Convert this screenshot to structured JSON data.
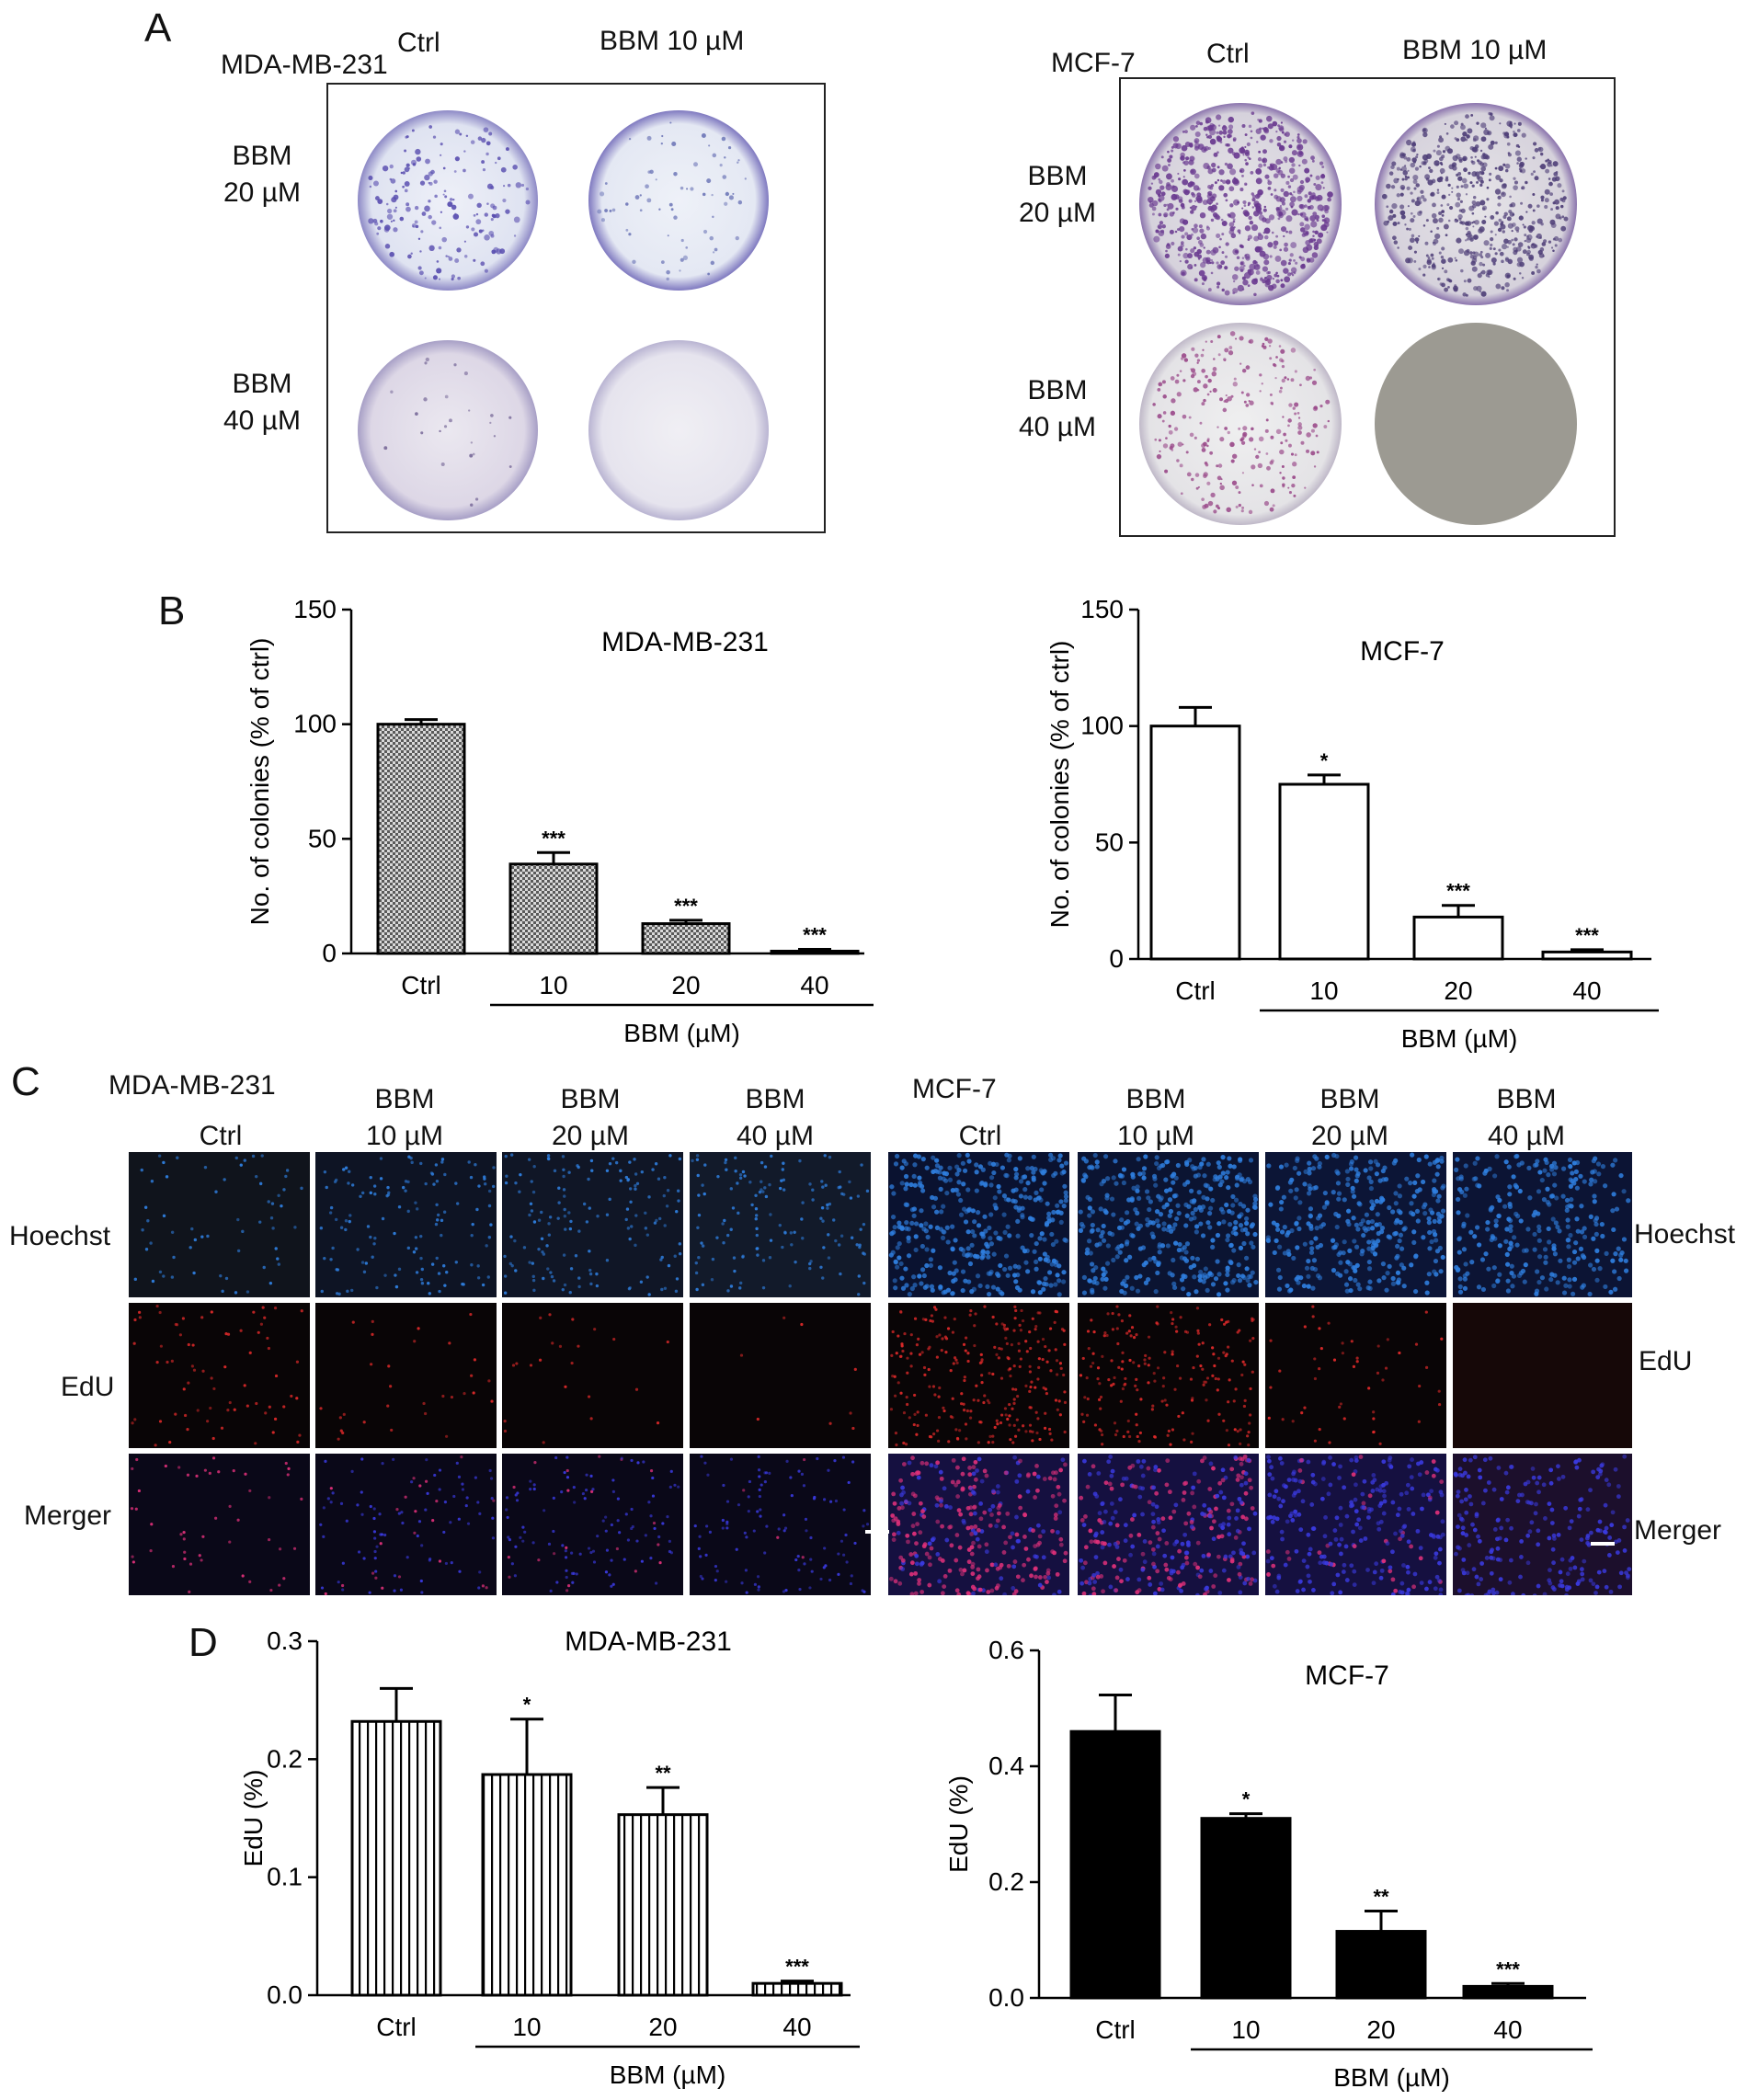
{
  "panels": {
    "A": {
      "letter": "A",
      "left": {
        "cell_line": "MDA-MB-231",
        "col_labels": [
          "Ctrl",
          "BBM 10 µM"
        ],
        "row_labels": [
          [
            "BBM",
            "20 µM"
          ],
          [
            "BBM",
            "40 µM"
          ]
        ]
      },
      "right": {
        "cell_line": "MCF-7",
        "col_labels": [
          "Ctrl",
          "BBM 10 µM"
        ],
        "row_labels": [
          [
            "BBM",
            "20 µM"
          ],
          [
            "BBM",
            "40 µM"
          ]
        ]
      }
    },
    "B": {
      "letter": "B"
    },
    "C": {
      "letter": "C",
      "left": {
        "cell_line": "MDA-MB-231",
        "col_labels": [
          [
            "",
            "Ctrl"
          ],
          [
            "BBM",
            "10 µM"
          ],
          [
            "BBM",
            "20 µM"
          ],
          [
            "BBM",
            "40 µM"
          ]
        ],
        "row_labels": [
          "Hoechst",
          "EdU",
          "Merger"
        ]
      },
      "right": {
        "cell_line": "MCF-7",
        "col_labels": [
          [
            "",
            "Ctrl"
          ],
          [
            "BBM",
            "10 µM"
          ],
          [
            "BBM",
            "20 µM"
          ],
          [
            "BBM",
            "40 µM"
          ]
        ],
        "row_labels": [
          "Hoechst",
          "EdU",
          "Merger"
        ]
      }
    },
    "D": {
      "letter": "D"
    }
  },
  "colors": {
    "colony_stain_mda": "#5a4fb0",
    "colony_stain_mcf": "#6a3a90",
    "hoechst": "#2f7fe0",
    "edu": "#e02a2a"
  },
  "chart_data": [
    {
      "id": "B-left",
      "type": "bar",
      "title": "MDA-MB-231",
      "categories": [
        "Ctrl",
        "10",
        "20",
        "40"
      ],
      "values": [
        100,
        39,
        13,
        1
      ],
      "errors": [
        2,
        5,
        1.5,
        0.8
      ],
      "significance": [
        "",
        "***",
        "***",
        "***"
      ],
      "ylabel": "No. of colonies (% of ctrl)",
      "xlabel": "BBM (µM)",
      "ylim": [
        0,
        150
      ],
      "yticks": [
        0,
        50,
        100,
        150
      ],
      "yticklabels": [
        "0",
        "50",
        "100",
        "150"
      ],
      "fill": "checkered"
    },
    {
      "id": "B-right",
      "type": "bar",
      "title": "MCF-7",
      "categories": [
        "Ctrl",
        "10",
        "20",
        "40"
      ],
      "values": [
        100,
        75,
        18,
        3
      ],
      "errors": [
        8,
        4,
        5,
        1
      ],
      "significance": [
        "",
        "*",
        "***",
        "***"
      ],
      "ylabel": "No. of colonies (% of ctrl)",
      "xlabel": "BBM (µM)",
      "ylim": [
        0,
        150
      ],
      "yticks": [
        0,
        50,
        100,
        150
      ],
      "yticklabels": [
        "0",
        "50",
        "100",
        "150"
      ],
      "fill": "white"
    },
    {
      "id": "D-left",
      "type": "bar",
      "title": "MDA-MB-231",
      "categories": [
        "Ctrl",
        "10",
        "20",
        "40"
      ],
      "values": [
        0.232,
        0.187,
        0.153,
        0.01
      ],
      "errors": [
        0.028,
        0.047,
        0.023,
        0.002
      ],
      "significance": [
        "",
        "*",
        "**",
        "***"
      ],
      "ylabel": "EdU (%)",
      "xlabel": "BBM (µM)",
      "ylim": [
        0,
        0.3
      ],
      "yticks": [
        0,
        0.1,
        0.2,
        0.3
      ],
      "yticklabels": [
        "0.0",
        "0.1",
        "0.2",
        "0.3"
      ],
      "fill": "vstripes"
    },
    {
      "id": "D-right",
      "type": "bar",
      "title": "MCF-7",
      "categories": [
        "Ctrl",
        "10",
        "20",
        "40"
      ],
      "values": [
        0.46,
        0.31,
        0.115,
        0.02
      ],
      "errors": [
        0.063,
        0.008,
        0.035,
        0.005
      ],
      "significance": [
        "",
        "*",
        "**",
        "***"
      ],
      "ylabel": "EdU (%)",
      "xlabel": "BBM (µM)",
      "ylim": [
        0,
        0.6
      ],
      "yticks": [
        0,
        0.2,
        0.4,
        0.6
      ],
      "yticklabels": [
        "0.0",
        "0.2",
        "0.4",
        "0.6"
      ],
      "fill": "black"
    }
  ]
}
